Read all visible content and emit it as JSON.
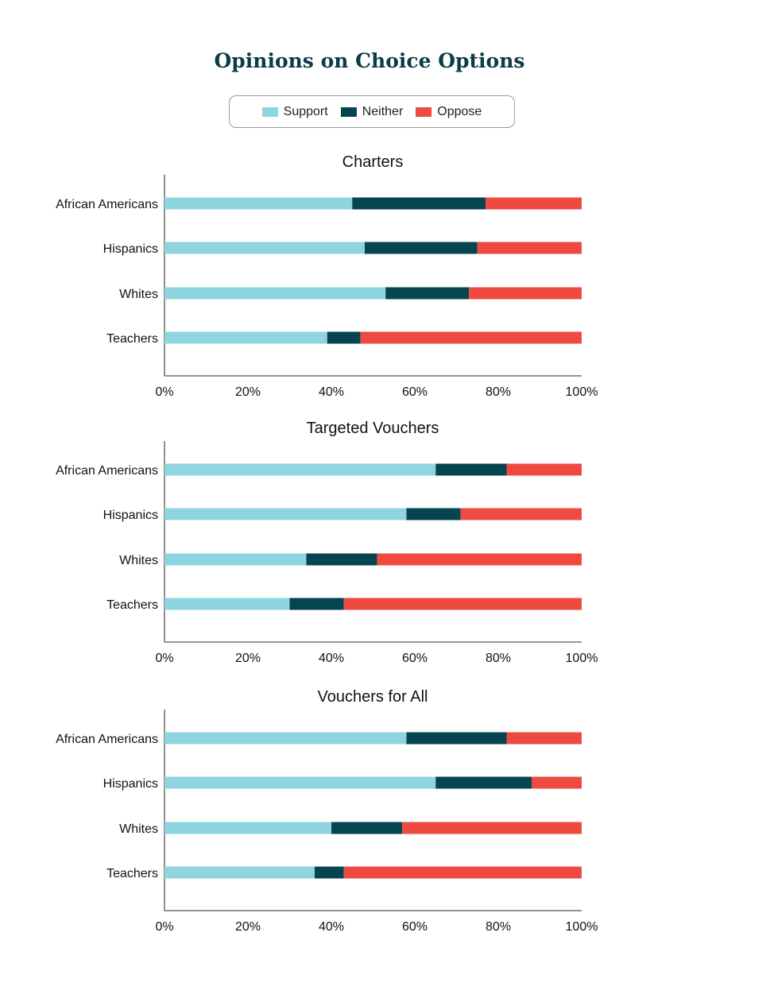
{
  "title": "Opinions on Choice Options",
  "colors": {
    "support": "#8fd5df",
    "neither": "#064550",
    "oppose": "#ef4a41"
  },
  "legend": [
    {
      "key": "support",
      "label": "Support"
    },
    {
      "key": "neither",
      "label": "Neither"
    },
    {
      "key": "oppose",
      "label": "Oppose"
    }
  ],
  "chart_data": [
    {
      "type": "bar",
      "stacked": true,
      "orientation": "horizontal",
      "title": "Charters",
      "categories": [
        "African Americans",
        "Hispanics",
        "Whites",
        "Teachers"
      ],
      "series": [
        {
          "name": "Support",
          "values": [
            45,
            48,
            53,
            39
          ]
        },
        {
          "name": "Neither",
          "values": [
            32,
            27,
            20,
            8
          ]
        },
        {
          "name": "Oppose",
          "values": [
            23,
            25,
            27,
            53
          ]
        }
      ],
      "xlim": [
        0,
        100
      ],
      "xticks": [
        "0%",
        "20%",
        "40%",
        "60%",
        "80%",
        "100%"
      ],
      "grid": false
    },
    {
      "type": "bar",
      "stacked": true,
      "orientation": "horizontal",
      "title": "Targeted Vouchers",
      "categories": [
        "African Americans",
        "Hispanics",
        "Whites",
        "Teachers"
      ],
      "series": [
        {
          "name": "Support",
          "values": [
            65,
            58,
            34,
            30
          ]
        },
        {
          "name": "Neither",
          "values": [
            17,
            13,
            17,
            13
          ]
        },
        {
          "name": "Oppose",
          "values": [
            18,
            29,
            49,
            57
          ]
        }
      ],
      "xlim": [
        0,
        100
      ],
      "xticks": [
        "0%",
        "20%",
        "40%",
        "60%",
        "80%",
        "100%"
      ],
      "grid": false
    },
    {
      "type": "bar",
      "stacked": true,
      "orientation": "horizontal",
      "title": "Vouchers for All",
      "categories": [
        "African Americans",
        "Hispanics",
        "Whites",
        "Teachers"
      ],
      "series": [
        {
          "name": "Support",
          "values": [
            58,
            65,
            40,
            36
          ]
        },
        {
          "name": "Neither",
          "values": [
            24,
            23,
            17,
            7
          ]
        },
        {
          "name": "Oppose",
          "values": [
            18,
            12,
            43,
            57
          ]
        }
      ],
      "xlim": [
        0,
        100
      ],
      "xticks": [
        "0%",
        "20%",
        "40%",
        "60%",
        "80%",
        "100%"
      ],
      "grid": false
    }
  ]
}
